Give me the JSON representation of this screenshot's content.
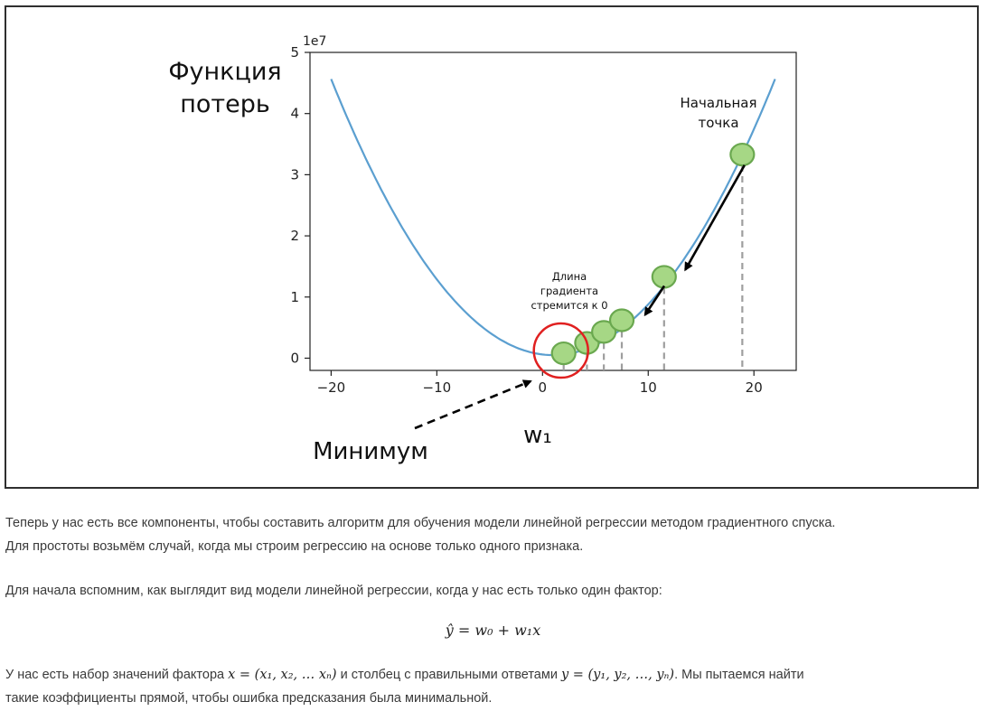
{
  "figure": {
    "ylabel_line1": "Функция",
    "ylabel_line2": "потерь",
    "xlabel": "w₁",
    "y_multiplier": "1e7",
    "minimum_label": "Минимум",
    "start_label_line1": "Начальная",
    "start_label_line2": "точка",
    "gradient_note_line1": "Длина",
    "gradient_note_line2": "градиента",
    "gradient_note_line3": "стремится к 0",
    "colors": {
      "curve": "#5b9fd0",
      "point_fill": "#a6d785",
      "point_stroke": "#6aa84f",
      "minimum_circle": "#e02020"
    }
  },
  "chart_data": {
    "type": "line",
    "xlabel": "w₁",
    "ylabel": "Функция потерь",
    "x_range": [
      -20,
      22
    ],
    "xlim": [
      -22,
      24
    ],
    "ylim": [
      -0.2,
      5.0
    ],
    "y_unit_multiplier": "1e7",
    "x_ticks": [
      -20,
      -10,
      0,
      10,
      20
    ],
    "x_tick_labels": [
      "−20",
      "−10",
      "0",
      "10",
      "20"
    ],
    "y_ticks": [
      0,
      1,
      2,
      3,
      4,
      5
    ],
    "y_tick_labels": [
      "0",
      "1",
      "2",
      "3",
      "4",
      "5"
    ],
    "curve_min": {
      "x": 1,
      "y": 0.05
    },
    "descent_points": [
      {
        "x": 18.9,
        "y": 3.33
      },
      {
        "x": 11.5,
        "y": 1.33
      },
      {
        "x": 7.5,
        "y": 0.62
      },
      {
        "x": 5.8,
        "y": 0.43
      },
      {
        "x": 4.2,
        "y": 0.25
      },
      {
        "x": 2.0,
        "y": 0.08
      }
    ],
    "grid": false
  },
  "text": {
    "para1_line1": "Теперь у нас есть все компоненты, чтобы составить алгоритм для обучения модели линейной регрессии методом градиентного спуска.",
    "para1_line2": "Для простоты возьмём случай, когда мы строим регрессию на основе только одного признака.",
    "para2": "Для начала вспомним, как выглядит вид модели линейной регрессии, когда у нас есть только один фактор:",
    "formula": "ŷ = w₀ + w₁x",
    "para3_a": "У нас есть набор значений фактора ",
    "para3_math1": "x = (x₁, x₂, … xₙ)",
    "para3_b": " и столбец с правильными ответами ",
    "para3_math2": "y = (y₁, y₂, …, yₙ)",
    "para3_c": ". Мы пытаемся найти",
    "para3_line2": "такие коэффициенты прямой, чтобы ошибка предсказания была минимальной."
  }
}
